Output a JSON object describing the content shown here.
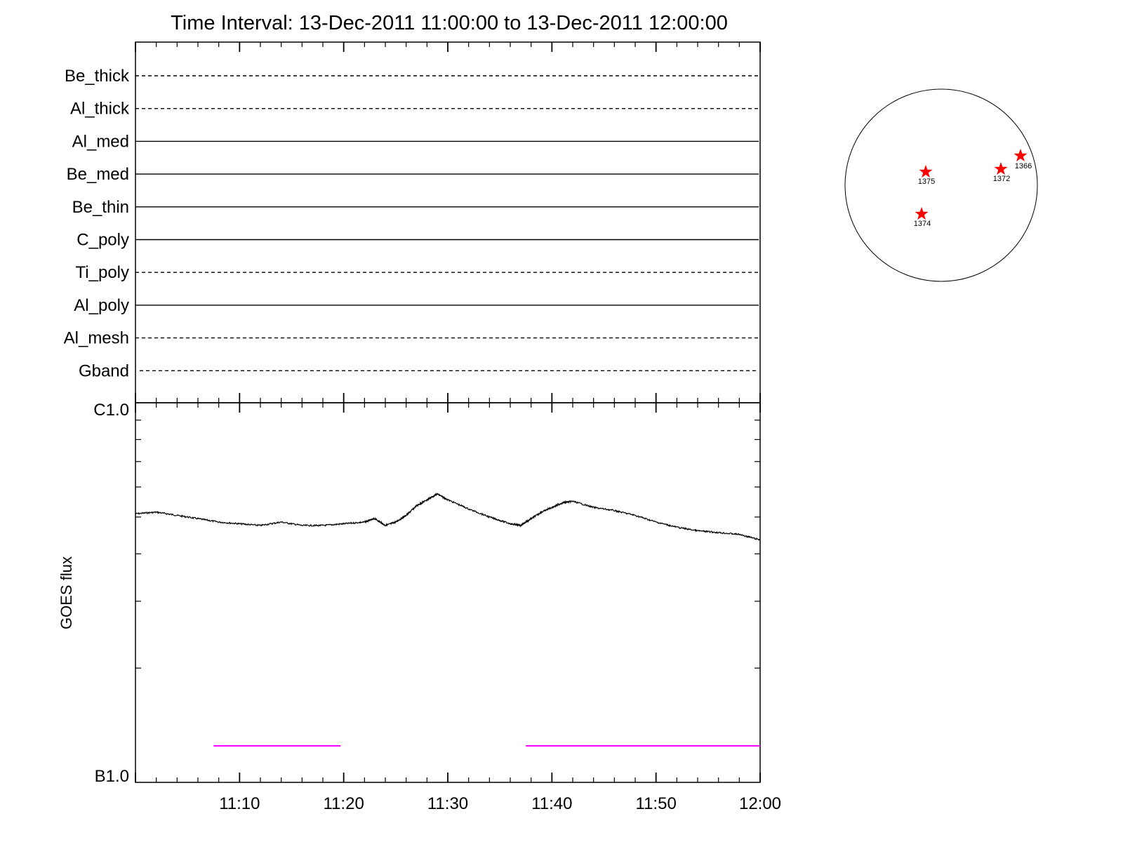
{
  "title": "Time Interval: 13-Dec-2011 11:00:00 to 13-Dec-2011 12:00:00",
  "chart_data": [
    {
      "type": "line",
      "panel": "xrt-filter-timeline",
      "x_range": [
        "11:00",
        "12:00"
      ],
      "channels": [
        {
          "name": "Be_thick",
          "style": "dashed"
        },
        {
          "name": "Al_thick",
          "style": "dashed"
        },
        {
          "name": "Al_med",
          "style": "solid"
        },
        {
          "name": "Be_med",
          "style": "solid"
        },
        {
          "name": "Be_thin",
          "style": "solid"
        },
        {
          "name": "C_poly",
          "style": "solid"
        },
        {
          "name": "Ti_poly",
          "style": "dashed"
        },
        {
          "name": "Al_poly",
          "style": "solid"
        },
        {
          "name": "Al_mesh",
          "style": "dashed"
        },
        {
          "name": "Gband",
          "style": "dashed"
        }
      ]
    },
    {
      "type": "line",
      "panel": "goes-flux",
      "ylabel": "GOES flux",
      "yscale": "log",
      "ylim_labels": [
        "B1.0",
        "C1.0"
      ],
      "ylim": [
        1e-07,
        1e-06
      ],
      "xticks": [
        "11:10",
        "11:20",
        "11:30",
        "11:40",
        "11:50",
        "12:00"
      ],
      "xlim_minutes": [
        0,
        60
      ],
      "series": [
        {
          "x_minutes": [
            0,
            2,
            4,
            6,
            8,
            10,
            12,
            14,
            16,
            18,
            20,
            22,
            23,
            24,
            25,
            26,
            27,
            28,
            29,
            30,
            32,
            34,
            36,
            37,
            38,
            39,
            40,
            41,
            42,
            44,
            46,
            48,
            50,
            52,
            54,
            56,
            58,
            60
          ],
          "values": [
            5.1e-07,
            5.15e-07,
            5.05e-07,
            4.95e-07,
            4.85e-07,
            4.8e-07,
            4.75e-07,
            4.85e-07,
            4.75e-07,
            4.75e-07,
            4.8e-07,
            4.85e-07,
            4.95e-07,
            4.75e-07,
            4.85e-07,
            5.05e-07,
            5.35e-07,
            5.55e-07,
            5.75e-07,
            5.55e-07,
            5.25e-07,
            5e-07,
            4.8e-07,
            4.75e-07,
            4.95e-07,
            5.15e-07,
            5.3e-07,
            5.45e-07,
            5.5e-07,
            5.3e-07,
            5.2e-07,
            5.05e-07,
            4.85e-07,
            4.7e-07,
            4.6e-07,
            4.55e-07,
            4.5e-07,
            4.35e-07
          ]
        }
      ],
      "coverage_bars": [
        {
          "color": "#ff00ff",
          "start_minute": 7.5,
          "end_minute": 19.7
        },
        {
          "color": "#ff00ff",
          "start_minute": 37.5,
          "end_minute": 60
        }
      ]
    },
    {
      "type": "scatter",
      "panel": "solar-disk",
      "marker": "star",
      "marker_color": "#ff0000",
      "active_regions": [
        {
          "label": "1375"
        },
        {
          "label": "1372"
        },
        {
          "label": "1366"
        },
        {
          "label": "1374"
        }
      ]
    }
  ]
}
